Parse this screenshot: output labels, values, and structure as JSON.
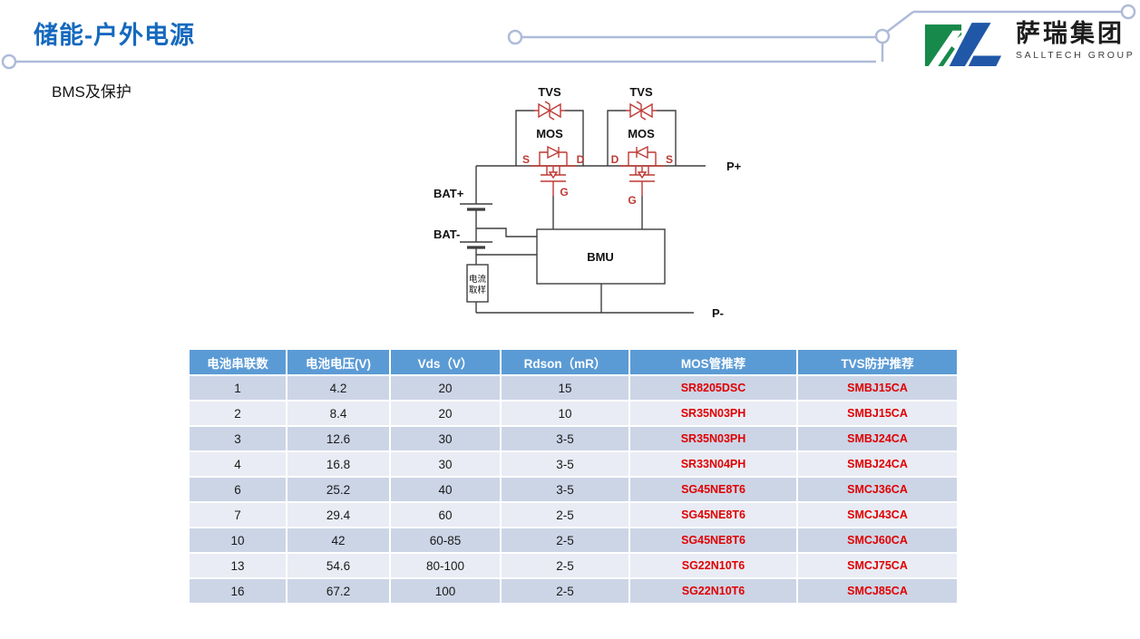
{
  "slide": {
    "title": "储能-户外电源",
    "subtitle": "BMS及保护"
  },
  "logo": {
    "name_cn": "萨瑞集团",
    "name_en": "SALLTECH GROUP",
    "icon": "salltech-logo-mark"
  },
  "colors": {
    "accent_blue": "#1569be",
    "decor_line": "#aebbd9",
    "wire": "#3f3f3f",
    "schematic_red": "#be3a34",
    "logo_green": "#17894b",
    "logo_blue": "#2057a7",
    "table_header_bg": "#5b9bd5",
    "table_row_odd": "#ccd5e6",
    "table_row_even": "#e9ecf4",
    "part_red": "#e00000"
  },
  "diagram": {
    "labels": {
      "tvs_left": "TVS",
      "tvs_right": "TVS",
      "mos_left": "MOS",
      "mos_right": "MOS",
      "s_left": "S",
      "d_left": "D",
      "d_right": "D",
      "s_right": "S",
      "g_left": "G",
      "g_right": "G",
      "bat_plus": "BAT+",
      "bat_minus": "BAT-",
      "bmu": "BMU",
      "current_sample": [
        "电流",
        "取样"
      ],
      "p_plus": "P+",
      "p_minus": "P-"
    }
  },
  "table": {
    "headers": [
      "电池串联数",
      "电池电压(V)",
      "Vds（V）",
      "Rdson（mR）",
      "MOS管推荐",
      "TVS防护推荐"
    ],
    "rows": [
      [
        "1",
        "4.2",
        "20",
        "15",
        "SR8205DSC",
        "SMBJ15CA"
      ],
      [
        "2",
        "8.4",
        "20",
        "10",
        "SR35N03PH",
        "SMBJ15CA"
      ],
      [
        "3",
        "12.6",
        "30",
        "3-5",
        "SR35N03PH",
        "SMBJ24CA"
      ],
      [
        "4",
        "16.8",
        "30",
        "3-5",
        "SR33N04PH",
        "SMBJ24CA"
      ],
      [
        "6",
        "25.2",
        "40",
        "3-5",
        "SG45NE8T6",
        "SMCJ36CA"
      ],
      [
        "7",
        "29.4",
        "60",
        "2-5",
        "SG45NE8T6",
        "SMCJ43CA"
      ],
      [
        "10",
        "42",
        "60-85",
        "2-5",
        "SG45NE8T6",
        "SMCJ60CA"
      ],
      [
        "13",
        "54.6",
        "80-100",
        "2-5",
        "SG22N10T6",
        "SMCJ75CA"
      ],
      [
        "16",
        "67.2",
        "100",
        "2-5",
        "SG22N10T6",
        "SMCJ85CA"
      ]
    ]
  }
}
